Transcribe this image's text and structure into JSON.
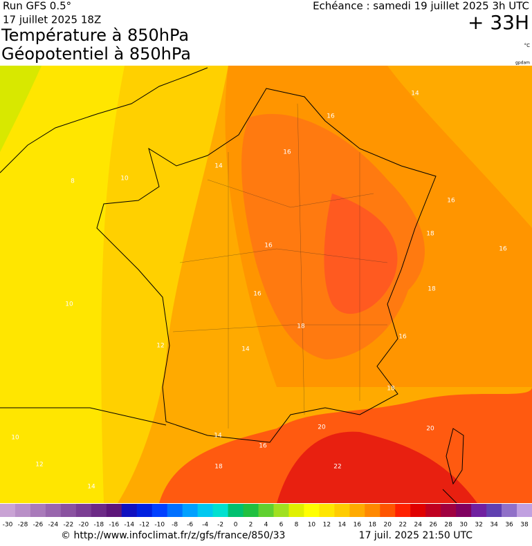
{
  "header": {
    "run": "Run GFS 0.5°",
    "date": "17 juillet 2025 18Z",
    "title1": "Température à 850hPa",
    "title2": "Géopotentiel à 850hPa",
    "echeance": "Echéance : samedi 19 juillet 2025 3h UTC",
    "lead": "+ 33H",
    "unit": "°C",
    "credit": "gpdam"
  },
  "map": {
    "contour_labels": [
      14,
      16,
      16,
      14,
      10,
      8,
      16,
      18,
      16,
      16,
      18,
      16,
      10,
      18,
      16,
      12,
      14,
      18,
      20,
      20,
      14,
      16,
      10,
      18,
      22,
      12,
      14
    ]
  },
  "colorbar": {
    "ticks": [
      -30,
      -28,
      -26,
      -24,
      -22,
      -20,
      -18,
      -16,
      -14,
      -12,
      -10,
      -8,
      -6,
      -4,
      -2,
      0,
      2,
      4,
      6,
      8,
      10,
      12,
      14,
      16,
      18,
      20,
      22,
      24,
      26,
      28,
      30,
      32,
      34,
      36,
      38
    ],
    "colors": [
      "#c9a3d4",
      "#b98fc7",
      "#a97aba",
      "#9966ad",
      "#8a52a0",
      "#7b3e93",
      "#6c2a86",
      "#5d1679",
      "#1010c0",
      "#0020e0",
      "#0040ff",
      "#0070ff",
      "#00a0ff",
      "#00c8f0",
      "#00e0d0",
      "#00c070",
      "#20c040",
      "#60d030",
      "#a0e020",
      "#e0f000",
      "#ffff00",
      "#ffe600",
      "#ffcc00",
      "#ffaa00",
      "#ff8800",
      "#ff5500",
      "#ff2000",
      "#e00000",
      "#c00020",
      "#a00040",
      "#800060",
      "#7020a0",
      "#6040b0",
      "#9070c8",
      "#c0a0e0"
    ]
  },
  "footer": {
    "url": "© http://www.infoclimat.fr/z/gfs/france/850/33",
    "time": "17 juil. 2025 21:50 UTC"
  }
}
